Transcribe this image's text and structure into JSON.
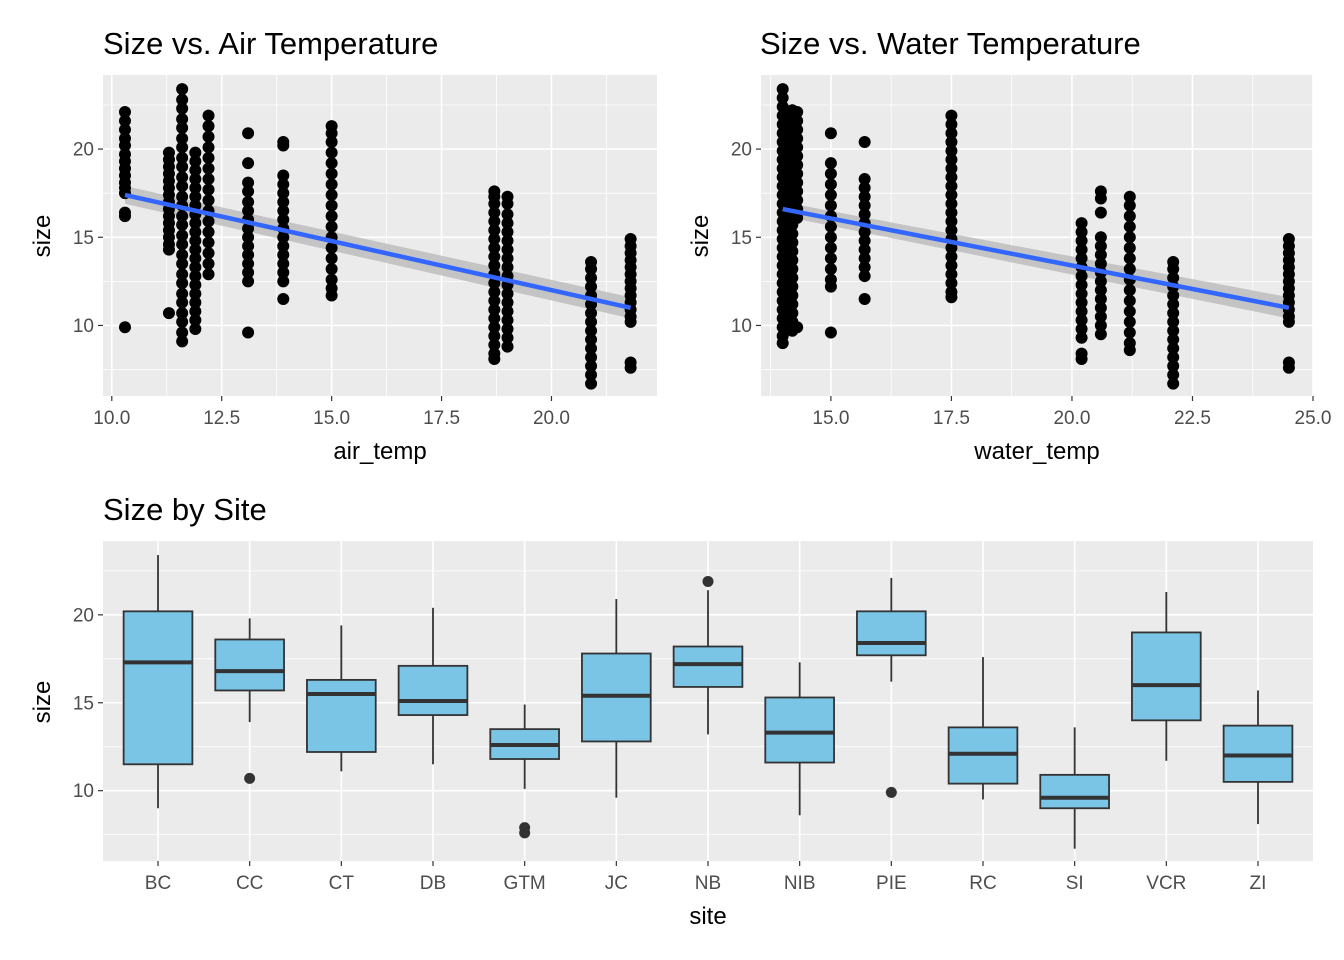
{
  "colors": {
    "panel_background": "#ebebeb",
    "grid": "#ffffff",
    "points": "#000000",
    "smooth_line": "#3366ff",
    "confidence_band": "#bdbdbd",
    "box_fill": "#7ac4e6",
    "box_outline": "#333333"
  },
  "chart_data": [
    {
      "type": "scatter",
      "title": "Size vs. Air Temperature",
      "xlabel": "air_temp",
      "ylabel": "size",
      "xlim": [
        9.8,
        22.4
      ],
      "ylim": [
        6.0,
        24.2
      ],
      "xticks": [
        10.0,
        12.5,
        15.0,
        17.5,
        20.0
      ],
      "xtick_labels": [
        "10.0",
        "12.5",
        "15.0",
        "17.5",
        "20.0"
      ],
      "yticks": [
        10,
        15,
        20
      ],
      "ytick_labels": [
        "10",
        "15",
        "20"
      ],
      "grid": true,
      "smooth": {
        "method": "lm",
        "x": [
          10.3,
          21.8
        ],
        "y": [
          17.4,
          11.0
        ],
        "se_halfwidth": [
          0.5,
          0.6
        ]
      },
      "groups": [
        {
          "x": 10.3,
          "values": [
            22.1,
            21.6,
            21.1,
            20.6,
            20.2,
            19.7,
            19.3,
            18.9,
            18.5,
            18.1,
            17.8,
            17.5,
            16.4,
            16.2,
            9.9
          ]
        },
        {
          "x": 11.3,
          "values": [
            19.8,
            19.4,
            19.0,
            18.6,
            18.2,
            17.8,
            17.4,
            17.0,
            16.6,
            16.2,
            15.8,
            15.4,
            15.0,
            14.6,
            14.3,
            10.7
          ]
        },
        {
          "x": 11.6,
          "values": [
            23.4,
            22.8,
            22.3,
            21.7,
            21.2,
            20.6,
            20.1,
            19.5,
            19.0,
            18.4,
            17.9,
            17.3,
            16.8,
            16.2,
            15.7,
            15.1,
            14.6,
            14.0,
            13.5,
            12.9,
            12.4,
            11.8,
            11.3,
            10.7,
            10.2,
            9.6,
            9.1
          ]
        },
        {
          "x": 11.9,
          "values": [
            19.8,
            19.3,
            18.8,
            18.3,
            17.8,
            17.3,
            16.8,
            16.3,
            15.8,
            15.3,
            14.8,
            14.3,
            13.8,
            13.3,
            12.8,
            12.3,
            11.8,
            11.3,
            10.8,
            10.3,
            9.8
          ]
        },
        {
          "x": 12.2,
          "values": [
            21.9,
            21.3,
            20.7,
            20.1,
            19.5,
            18.9,
            18.3,
            17.7,
            17.1,
            16.5,
            15.9,
            15.3,
            14.7,
            14.1,
            13.5,
            12.9
          ]
        },
        {
          "x": 13.1,
          "values": [
            20.9,
            19.2,
            18.1,
            17.6,
            17.0,
            16.5,
            16.0,
            15.5,
            15.0,
            14.5,
            14.0,
            13.5,
            13.0,
            12.5,
            9.6
          ]
        },
        {
          "x": 13.9,
          "values": [
            20.4,
            20.2,
            18.5,
            18.0,
            17.5,
            17.0,
            16.5,
            16.0,
            15.5,
            15.0,
            14.5,
            14.0,
            13.5,
            13.0,
            12.5,
            11.5
          ]
        },
        {
          "x": 15.0,
          "values": [
            21.3,
            20.9,
            20.4,
            19.8,
            19.2,
            18.6,
            18.0,
            17.4,
            16.8,
            16.2,
            15.6,
            15.0,
            14.4,
            13.8,
            13.2,
            12.6,
            12.1,
            11.7
          ]
        },
        {
          "x": 18.7,
          "values": [
            17.6,
            17.3,
            16.9,
            16.4,
            15.9,
            15.4,
            14.9,
            14.4,
            13.9,
            13.4,
            12.9,
            12.4,
            11.9,
            11.4,
            10.9,
            10.4,
            9.9,
            9.4,
            8.9,
            8.4,
            8.1
          ]
        },
        {
          "x": 19.0,
          "values": [
            17.3,
            16.9,
            16.3,
            15.8,
            15.3,
            14.8,
            14.3,
            13.8,
            13.3,
            12.8,
            12.3,
            11.8,
            11.3,
            10.8,
            10.3,
            9.8,
            9.3,
            8.8
          ]
        },
        {
          "x": 20.9,
          "values": [
            13.6,
            13.2,
            12.7,
            12.2,
            11.7,
            11.2,
            10.7,
            10.2,
            9.7,
            9.2,
            8.7,
            8.2,
            7.7,
            7.2,
            6.7
          ]
        },
        {
          "x": 21.8,
          "values": [
            14.9,
            14.5,
            14.1,
            13.7,
            13.3,
            12.9,
            12.5,
            12.1,
            11.7,
            11.3,
            10.9,
            10.5,
            10.2,
            7.9,
            7.6
          ]
        }
      ]
    },
    {
      "type": "scatter",
      "title": "Size vs. Water Temperature",
      "xlabel": "water_temp",
      "ylabel": "size",
      "xlim": [
        13.55,
        25.0
      ],
      "ylim": [
        6.0,
        24.2
      ],
      "xticks": [
        15.0,
        17.5,
        20.0,
        22.5,
        25.0
      ],
      "xtick_labels": [
        "15.0",
        "17.5",
        "20.0",
        "22.5",
        "25.0"
      ],
      "yticks": [
        10,
        15,
        20
      ],
      "ytick_labels": [
        "10",
        "15",
        "20"
      ],
      "grid": true,
      "smooth": {
        "method": "lm",
        "x": [
          14.0,
          24.5
        ],
        "y": [
          16.6,
          11.0
        ],
        "se_halfwidth": [
          0.4,
          0.6
        ]
      },
      "groups": [
        {
          "x": 14.0,
          "values": [
            23.4,
            22.9,
            22.4,
            21.9,
            21.4,
            20.9,
            20.4,
            19.9,
            19.4,
            18.9,
            18.4,
            17.9,
            17.4,
            16.9,
            16.4,
            15.9,
            15.4,
            14.9,
            14.4,
            13.9,
            13.4,
            12.9,
            12.4,
            11.9,
            11.4,
            10.9,
            10.4,
            9.9,
            9.4,
            9.0
          ]
        },
        {
          "x": 14.2,
          "values": [
            22.2,
            21.7,
            21.2,
            20.7,
            20.2,
            19.7,
            19.2,
            18.7,
            18.2,
            17.7,
            17.2,
            16.7,
            16.2,
            15.7,
            15.2,
            14.7,
            14.2,
            13.7,
            13.2,
            12.7,
            12.2,
            11.7,
            11.2,
            10.7,
            10.2,
            9.7
          ]
        },
        {
          "x": 14.3,
          "values": [
            22.1,
            21.6,
            21.1,
            20.6,
            20.1,
            19.6,
            19.1,
            18.6,
            18.1,
            17.6,
            17.1,
            16.6,
            16.1,
            9.9
          ]
        },
        {
          "x": 15.0,
          "values": [
            20.9,
            19.2,
            18.6,
            18.0,
            17.4,
            16.8,
            16.2,
            15.6,
            15.0,
            14.4,
            13.8,
            13.2,
            12.6,
            12.2,
            9.6
          ]
        },
        {
          "x": 15.7,
          "values": [
            20.4,
            18.3,
            17.8,
            17.3,
            16.8,
            16.3,
            15.8,
            15.3,
            14.8,
            14.3,
            13.8,
            13.3,
            12.8,
            11.5
          ]
        },
        {
          "x": 17.5,
          "values": [
            21.9,
            21.4,
            20.9,
            20.4,
            19.9,
            19.4,
            18.9,
            18.4,
            17.9,
            17.4,
            16.9,
            16.4,
            15.9,
            15.4,
            14.9,
            14.4,
            13.9,
            13.4,
            12.9,
            12.4,
            11.9,
            11.6
          ]
        },
        {
          "x": 20.2,
          "values": [
            15.8,
            15.3,
            14.8,
            14.3,
            13.8,
            13.3,
            12.8,
            12.3,
            11.8,
            11.3,
            10.8,
            10.3,
            9.8,
            9.3,
            8.4,
            8.1
          ]
        },
        {
          "x": 20.6,
          "values": [
            17.6,
            17.2,
            16.4,
            15.0,
            14.5,
            14.0,
            13.5,
            13.0,
            12.5,
            12.0,
            11.5,
            11.0,
            10.5,
            10.0,
            9.5
          ]
        },
        {
          "x": 21.2,
          "values": [
            17.3,
            16.8,
            16.2,
            15.6,
            15.0,
            14.4,
            13.8,
            13.2,
            12.6,
            12.0,
            11.4,
            10.8,
            10.2,
            9.6,
            9.0,
            8.6
          ]
        },
        {
          "x": 22.1,
          "values": [
            13.6,
            13.2,
            12.7,
            12.2,
            11.7,
            11.2,
            10.7,
            10.2,
            9.7,
            9.2,
            8.7,
            8.2,
            7.7,
            7.2,
            6.7
          ]
        },
        {
          "x": 24.5,
          "values": [
            14.9,
            14.5,
            14.1,
            13.7,
            13.3,
            12.9,
            12.5,
            12.1,
            11.7,
            11.3,
            10.9,
            10.5,
            10.2,
            7.9,
            7.6
          ]
        }
      ]
    },
    {
      "type": "box",
      "title": "Size by Site",
      "xlabel": "site",
      "ylabel": "size",
      "ylim": [
        6.0,
        24.2
      ],
      "yticks": [
        10,
        15,
        20
      ],
      "ytick_labels": [
        "10",
        "15",
        "20"
      ],
      "grid": true,
      "boxes": [
        {
          "site": "BC",
          "min": 9.0,
          "q1": 11.5,
          "median": 17.3,
          "q3": 20.2,
          "max": 23.4,
          "outliers": []
        },
        {
          "site": "CC",
          "min": 13.9,
          "q1": 15.7,
          "median": 16.8,
          "q3": 18.6,
          "max": 19.8,
          "outliers": [
            10.7
          ]
        },
        {
          "site": "CT",
          "min": 11.1,
          "q1": 12.2,
          "median": 15.5,
          "q3": 16.3,
          "max": 19.4,
          "outliers": []
        },
        {
          "site": "DB",
          "min": 11.5,
          "q1": 14.3,
          "median": 15.1,
          "q3": 17.1,
          "max": 20.4,
          "outliers": []
        },
        {
          "site": "GTM",
          "min": 10.1,
          "q1": 11.8,
          "median": 12.6,
          "q3": 13.5,
          "max": 14.9,
          "outliers": [
            7.9,
            7.6
          ]
        },
        {
          "site": "JC",
          "min": 9.6,
          "q1": 12.8,
          "median": 15.4,
          "q3": 17.8,
          "max": 20.9,
          "outliers": []
        },
        {
          "site": "NB",
          "min": 13.2,
          "q1": 15.9,
          "median": 17.2,
          "q3": 18.2,
          "max": 21.4,
          "outliers": [
            21.9
          ]
        },
        {
          "site": "NIB",
          "min": 8.6,
          "q1": 11.6,
          "median": 13.3,
          "q3": 15.3,
          "max": 17.3,
          "outliers": []
        },
        {
          "site": "PIE",
          "min": 16.2,
          "q1": 17.7,
          "median": 18.4,
          "q3": 20.2,
          "max": 22.1,
          "outliers": [
            9.9
          ]
        },
        {
          "site": "RC",
          "min": 9.5,
          "q1": 10.4,
          "median": 12.1,
          "q3": 13.6,
          "max": 17.6,
          "outliers": []
        },
        {
          "site": "SI",
          "min": 6.7,
          "q1": 9.0,
          "median": 9.6,
          "q3": 10.9,
          "max": 13.6,
          "outliers": []
        },
        {
          "site": "VCR",
          "min": 11.7,
          "q1": 14.0,
          "median": 16.0,
          "q3": 19.0,
          "max": 21.3,
          "outliers": []
        },
        {
          "site": "ZI",
          "min": 8.1,
          "q1": 10.5,
          "median": 12.0,
          "q3": 13.7,
          "max": 15.7,
          "outliers": []
        }
      ]
    }
  ]
}
